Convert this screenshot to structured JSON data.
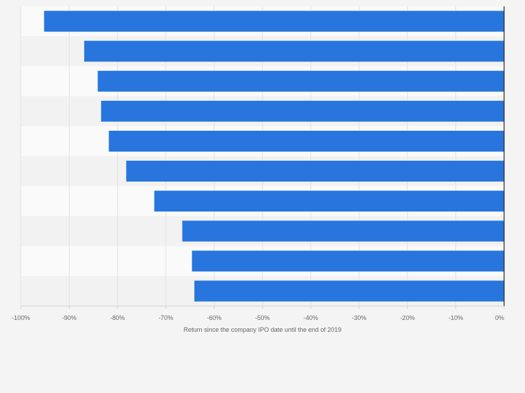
{
  "chart_data": {
    "type": "bar",
    "orientation": "horizontal",
    "categories": [
      "",
      "",
      "",
      "",
      "",
      "",
      "",
      "",
      "",
      ""
    ],
    "values": [
      -95.2,
      -86.9,
      -84.1,
      -83.4,
      -81.8,
      -78.2,
      -72.4,
      -66.6,
      -64.6,
      -64.1
    ],
    "xlim": [
      -100,
      0
    ],
    "x_ticks": [
      -100,
      -90,
      -80,
      -70,
      -60,
      -50,
      -40,
      -30,
      -20,
      -10,
      0
    ],
    "x_tick_labels": [
      "-100%",
      "-90%",
      "-80%",
      "-70%",
      "-60%",
      "-50%",
      "-40%",
      "-30%",
      "-20%",
      "-10%",
      "0%"
    ],
    "xlabel": "Return since the company IPO date until the end of 2019",
    "ylabel": "",
    "title": "",
    "grid": true,
    "legend": "none",
    "colors": {
      "bar": "#2876dd",
      "page_background": "#f4f4f4",
      "band_light": "#fafafa",
      "band_dark": "#f2f2f2",
      "gridline": "#e1e1e1",
      "zero_line": "#222222",
      "axis_line": "#d0d0d0",
      "tick_label": "#666666"
    }
  }
}
